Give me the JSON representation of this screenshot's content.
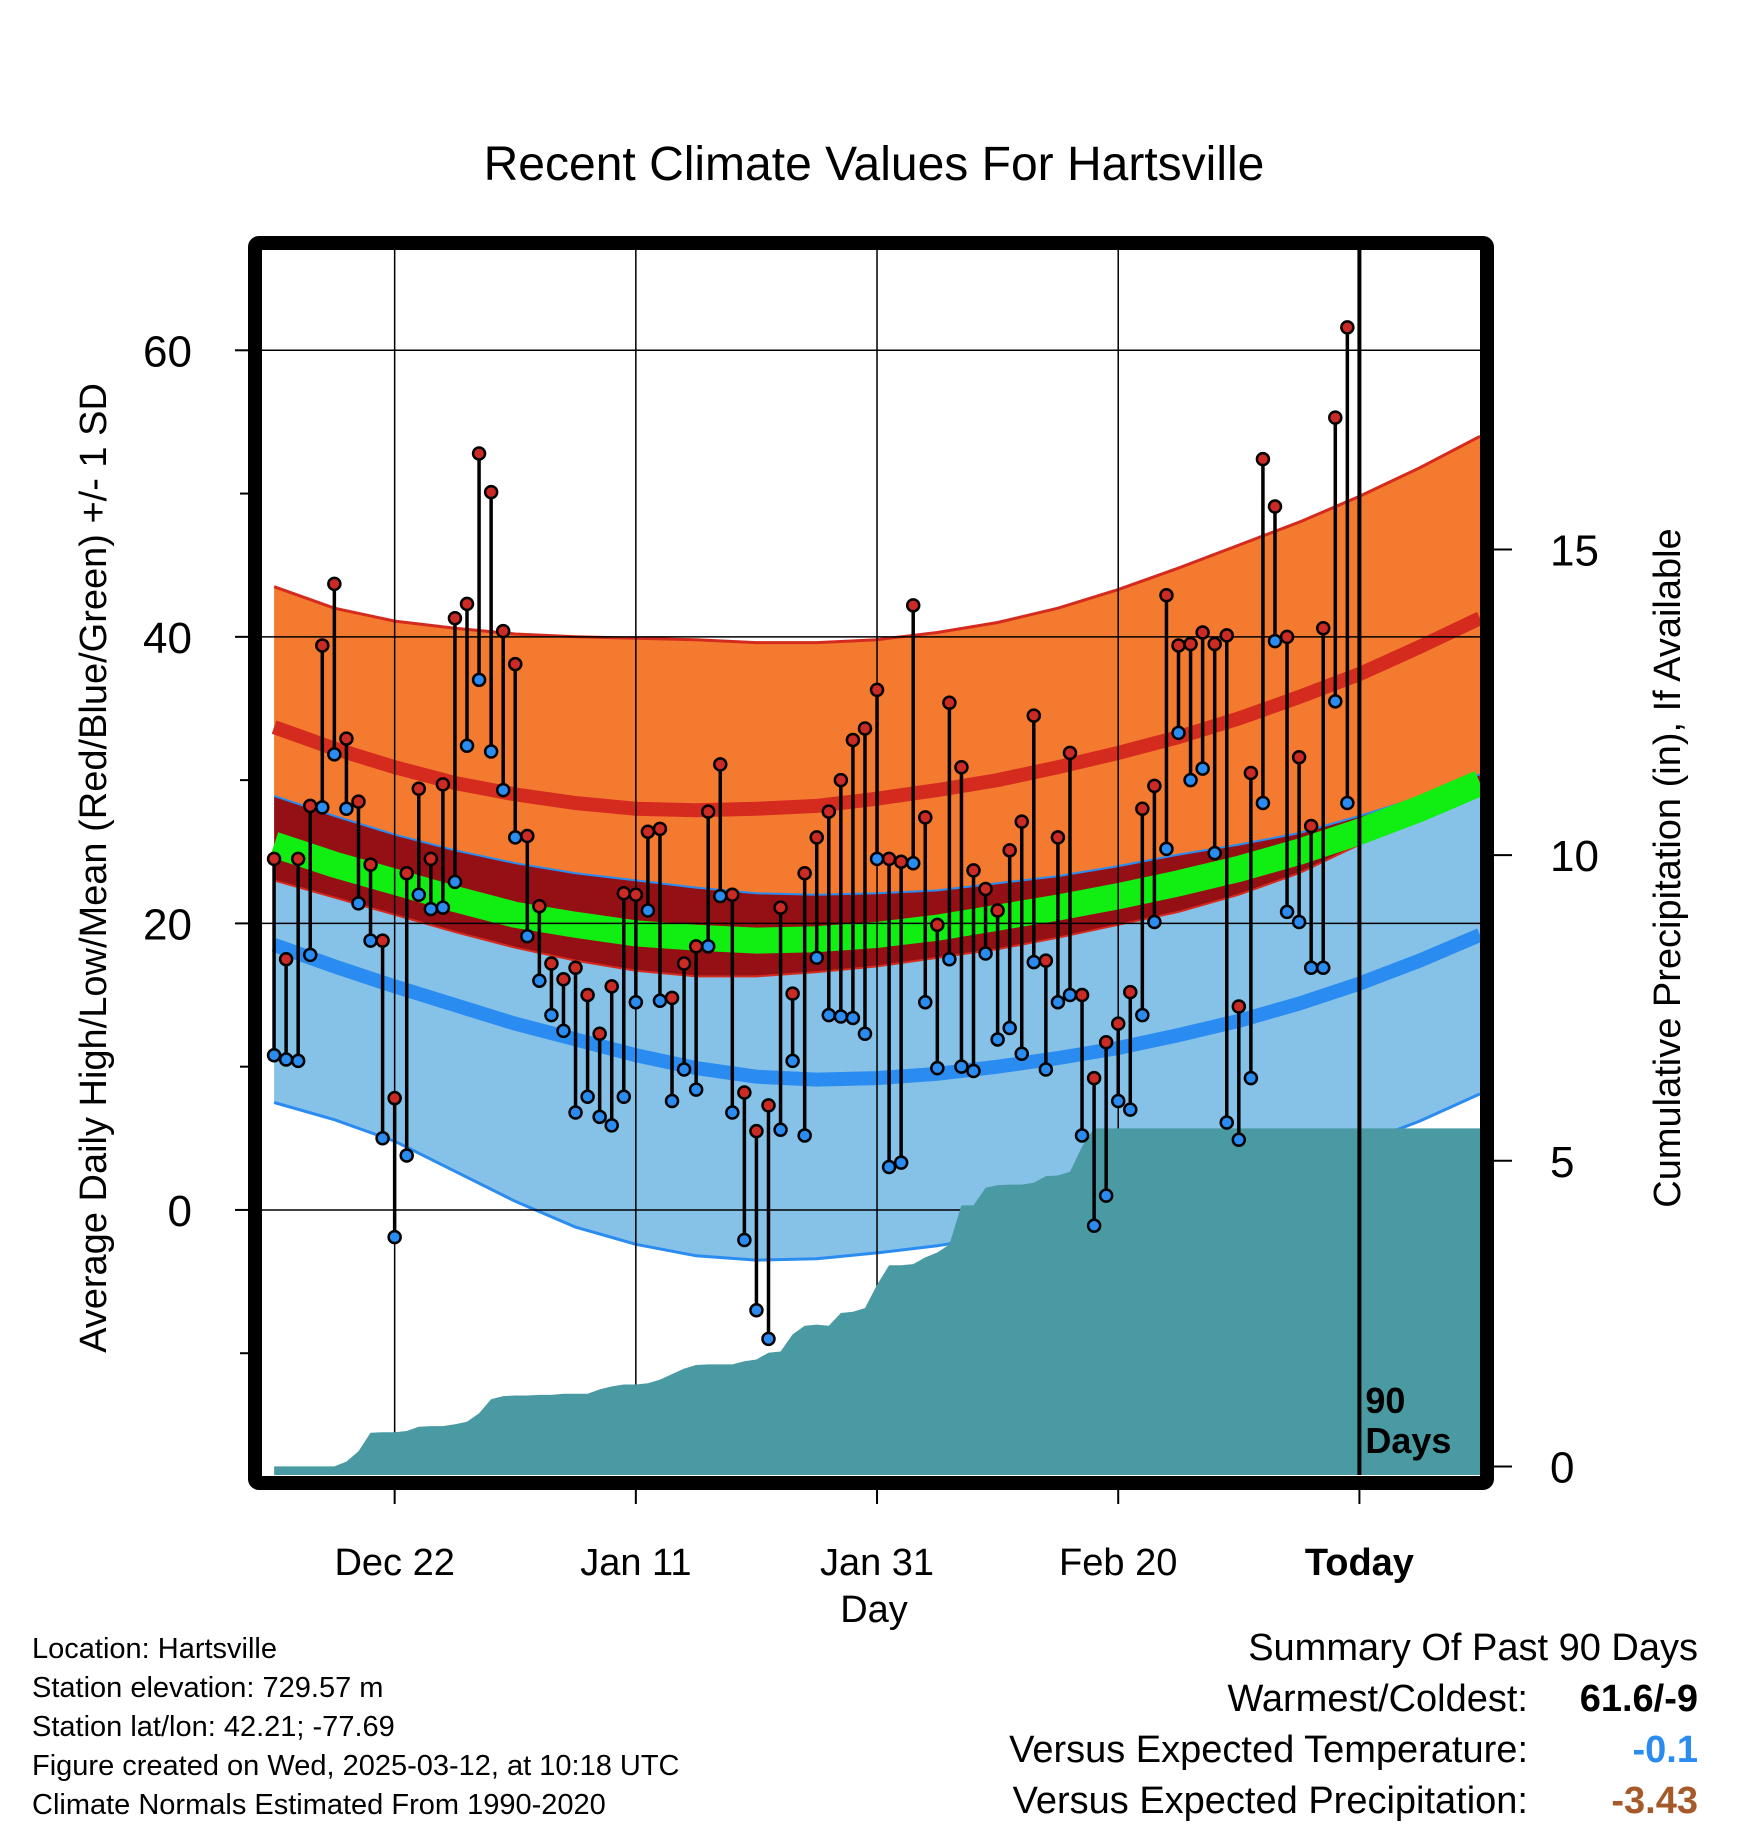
{
  "chart_data": {
    "type": "line",
    "title": "Recent Climate Values For Hartsville",
    "xlabel": "Day",
    "ylabel": "Average Daily High/Low/Mean (Red/Blue/Green) +/- 1 SD",
    "y2label": "Cumulative Precipitation (in), If Available",
    "xlim": [
      -11,
      90
    ],
    "ylim": [
      -18.5,
      67
    ],
    "y2lim": [
      -0.14,
      19.9
    ],
    "x_ticks": [
      {
        "x": 0,
        "label": "Dec 22"
      },
      {
        "x": 20,
        "label": "Jan 11"
      },
      {
        "x": 40,
        "label": "Jan 31"
      },
      {
        "x": 60,
        "label": "Feb 20"
      },
      {
        "x": 80,
        "label": "Today"
      }
    ],
    "y_ticks": [
      0,
      20,
      40,
      60
    ],
    "y_minor_ticks": [
      -10,
      10,
      30,
      50
    ],
    "y2_ticks": [
      0,
      5,
      10,
      15
    ],
    "today_x": 80,
    "today_label": "90\nDays",
    "normals": {
      "x": [
        -10,
        -5,
        0,
        5,
        10,
        15,
        20,
        25,
        30,
        35,
        40,
        45,
        50,
        55,
        60,
        65,
        70,
        75,
        80,
        85,
        90
      ],
      "high_mean": [
        33.7,
        32.2,
        30.9,
        29.8,
        29.0,
        28.4,
        28.0,
        27.9,
        28.0,
        28.2,
        28.7,
        29.3,
        30.0,
        30.9,
        31.9,
        33.0,
        34.3,
        35.8,
        37.4,
        39.3,
        41.3
      ],
      "high_upper": [
        43.5,
        42.0,
        41.1,
        40.6,
        40.2,
        40.0,
        39.9,
        39.8,
        39.6,
        39.6,
        39.8,
        40.3,
        41.0,
        42.0,
        43.3,
        44.8,
        46.4,
        48.0,
        49.8,
        51.8,
        54.0
      ],
      "high_lower": [
        28.9,
        27.5,
        26.2,
        25.1,
        24.2,
        23.5,
        23.0,
        22.5,
        22.1,
        22.0,
        22.1,
        22.3,
        22.8,
        23.3,
        24.0,
        24.8,
        25.5,
        26.3,
        27.5,
        28.8,
        30.4
      ],
      "mean": [
        25.5,
        24.1,
        22.9,
        21.7,
        20.6,
        19.9,
        19.3,
        19.0,
        18.8,
        18.9,
        19.2,
        19.7,
        20.4,
        21.1,
        21.9,
        22.8,
        23.8,
        25.0,
        26.4,
        28.0,
        29.8
      ],
      "low_mean": [
        18.5,
        17.0,
        15.6,
        14.3,
        13.0,
        11.9,
        10.8,
        9.9,
        9.3,
        9.1,
        9.2,
        9.5,
        10.0,
        10.6,
        11.3,
        12.2,
        13.2,
        14.4,
        15.8,
        17.4,
        19.2
      ],
      "low_upper": [
        23.0,
        21.8,
        20.6,
        19.4,
        18.3,
        17.4,
        16.7,
        16.3,
        16.3,
        16.6,
        17.0,
        17.6,
        18.2,
        19.0,
        19.9,
        20.8,
        22.0,
        23.5,
        25.5,
        27.3,
        29.3
      ],
      "low_lower": [
        7.5,
        6.3,
        4.8,
        2.7,
        0.6,
        -1.2,
        -2.4,
        -3.2,
        -3.5,
        -3.4,
        -3.0,
        -2.5,
        -1.8,
        -1.0,
        0.0,
        1.1,
        2.4,
        3.8,
        4.6,
        6.2,
        8.1
      ]
    },
    "daily": {
      "start_day": -10,
      "high": [
        24.5,
        17.5,
        24.5,
        28.2,
        39.4,
        43.7,
        32.9,
        28.5,
        24.1,
        18.8,
        7.8,
        23.5,
        29.4,
        24.5,
        29.7,
        41.3,
        42.3,
        52.8,
        50.1,
        40.4,
        38.1,
        26.1,
        21.2,
        17.2,
        16.1,
        16.9,
        15.0,
        12.3,
        15.6,
        22.1,
        22.0,
        26.4,
        26.6,
        14.8,
        17.2,
        18.4,
        27.8,
        31.1,
        22.0,
        8.2,
        5.5,
        7.3,
        21.1,
        15.1,
        23.5,
        26.0,
        27.8,
        30.0,
        32.8,
        33.6,
        36.3,
        24.5,
        24.3,
        42.2,
        27.4,
        19.9,
        35.4,
        30.9,
        23.7,
        22.4,
        20.9,
        25.1,
        27.1,
        34.5,
        17.4,
        26.0,
        31.9,
        15.0,
        9.2,
        11.7,
        13.0,
        15.2,
        28.0,
        29.6,
        42.9,
        39.4,
        39.5,
        40.3,
        39.5,
        40.1,
        14.2,
        30.5,
        52.4,
        49.1,
        40.0,
        31.6,
        26.8,
        40.6,
        55.3,
        61.6
      ],
      "low": [
        10.8,
        10.5,
        10.4,
        17.8,
        28.1,
        31.8,
        28.0,
        21.4,
        18.8,
        5.0,
        -1.9,
        3.8,
        22.0,
        21.0,
        21.1,
        22.9,
        32.4,
        37.0,
        32.0,
        29.3,
        26.0,
        19.1,
        16.0,
        13.6,
        12.5,
        6.8,
        7.9,
        6.5,
        5.9,
        7.9,
        14.5,
        20.9,
        14.6,
        7.6,
        9.8,
        8.4,
        18.4,
        21.9,
        6.8,
        -2.1,
        -7.0,
        -9.0,
        5.6,
        10.4,
        5.2,
        17.6,
        13.6,
        13.5,
        13.4,
        12.3,
        24.5,
        3.0,
        3.3,
        24.2,
        14.5,
        9.9,
        17.5,
        10.0,
        9.7,
        17.9,
        11.9,
        12.7,
        10.9,
        17.3,
        9.8,
        14.5,
        15.0,
        5.2,
        -1.1,
        1.0,
        7.6,
        7.0,
        13.6,
        20.1,
        25.2,
        33.3,
        30.0,
        30.8,
        24.9,
        6.1,
        4.9,
        9.2,
        28.4,
        39.7,
        20.8,
        20.1,
        16.9,
        16.9,
        35.5,
        28.4
      ]
    },
    "precip": {
      "x": [
        -10,
        -5,
        -4,
        -3,
        -2,
        -1,
        0,
        1,
        2,
        3,
        4,
        5,
        6,
        7,
        8,
        9,
        10,
        11,
        12,
        13,
        14,
        15,
        16,
        17,
        18,
        19,
        20,
        21,
        22,
        23,
        24,
        25,
        26,
        27,
        28,
        29,
        30,
        31,
        32,
        33,
        34,
        35,
        36,
        37,
        38,
        39,
        40,
        41,
        42,
        43,
        44,
        45,
        46,
        47,
        48,
        49,
        50,
        51,
        52,
        53,
        54,
        55,
        56,
        57,
        58,
        59,
        60,
        61,
        62,
        63,
        64,
        65,
        66,
        67,
        68,
        69,
        70,
        71,
        72,
        73,
        74,
        75,
        76,
        77,
        78,
        79,
        80,
        90
      ],
      "cum": [
        0,
        0,
        0.08,
        0.25,
        0.55,
        0.56,
        0.56,
        0.58,
        0.65,
        0.66,
        0.66,
        0.69,
        0.73,
        0.87,
        1.1,
        1.15,
        1.16,
        1.16,
        1.17,
        1.17,
        1.19,
        1.19,
        1.19,
        1.26,
        1.31,
        1.34,
        1.34,
        1.36,
        1.42,
        1.51,
        1.6,
        1.66,
        1.67,
        1.67,
        1.67,
        1.72,
        1.75,
        1.86,
        1.88,
        2.16,
        2.3,
        2.32,
        2.3,
        2.51,
        2.53,
        2.59,
        2.97,
        3.29,
        3.29,
        3.31,
        3.42,
        3.5,
        3.63,
        4.27,
        4.27,
        4.56,
        4.6,
        4.61,
        4.61,
        4.64,
        4.75,
        4.76,
        4.82,
        5.23,
        5.53,
        5.53,
        5.53,
        5.53,
        5.53,
        5.53,
        5.53,
        5.53,
        5.53,
        5.53,
        5.53,
        5.53,
        5.53,
        5.53,
        5.53,
        5.53,
        5.53,
        5.53,
        5.53,
        5.53,
        5.53,
        5.53,
        5.53,
        5.53
      ]
    }
  },
  "info": {
    "location": "Location: Hartsville",
    "elevation": "Station elevation: 729.57 m",
    "latlon": "Station lat/lon: 42.21; -77.69",
    "created": "Figure created on Wed, 2025-03-12, at 10:18 UTC",
    "normals": "Climate Normals Estimated From 1990-2020"
  },
  "summary": {
    "title": "Summary Of Past 90 Days",
    "warm_cold_label": "Warmest/Coldest:",
    "warm_cold_value": "61.6/-9",
    "temp_label": "Versus Expected Temperature:",
    "temp_value": "-0.1",
    "precip_label": "Versus Expected Precipitation:",
    "precip_value": "-3.43"
  },
  "colors": {
    "high_band": "#f47a30",
    "high_band_edge": "#d42b1e",
    "high_mean": "#d42b1e",
    "overlap": "#951015",
    "low_band": "#86c1e8",
    "low_band_edge": "#2a8cf0",
    "low_mean": "#2a8cf0",
    "mean": "#11ee11",
    "precip": "#4a9aa3",
    "high_marker": "#cc2a24",
    "low_marker": "#2a8cf0",
    "temp_value": "#2a8cf0",
    "precip_value": "#a65a2a"
  }
}
